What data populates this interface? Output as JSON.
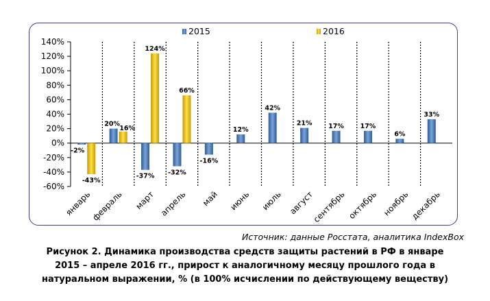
{
  "chart_data": {
    "type": "bar",
    "categories": [
      "январь",
      "февраль",
      "март",
      "апрель",
      "май",
      "июнь",
      "июль",
      "август",
      "сентябрь",
      "октябрь",
      "ноябрь",
      "декабрь"
    ],
    "series": [
      {
        "name": "2015",
        "color": "#4f81bd",
        "values": [
          -2,
          20,
          -37,
          -32,
          -16,
          12,
          42,
          21,
          17,
          17,
          6,
          33
        ],
        "labels": [
          "-2%",
          "20%",
          "-37%",
          "-32%",
          "-16%",
          "12%",
          "42%",
          "21%",
          "17%",
          "17%",
          "6%",
          "33%"
        ]
      },
      {
        "name": "2016",
        "color": "#f0c000",
        "values": [
          -43,
          16,
          124,
          66,
          null,
          null,
          null,
          null,
          null,
          null,
          null,
          null
        ],
        "labels": [
          "-43%",
          "16%",
          "124%",
          "66%",
          null,
          null,
          null,
          null,
          null,
          null,
          null,
          null
        ]
      }
    ],
    "ylim": [
      -60,
      140
    ],
    "yticks": [
      -60,
      -40,
      -20,
      0,
      20,
      40,
      60,
      80,
      100,
      120,
      140
    ],
    "ytick_labels": [
      "-60%",
      "-40%",
      "-20%",
      "0%",
      "20%",
      "40%",
      "60%",
      "80%",
      "100%",
      "120%",
      "140%"
    ],
    "legend": "top-center",
    "vertical_separators": "dotted"
  },
  "source": "Источник: данные Росстата, аналитика IndexBox",
  "caption": [
    "Рисунок 2. Динамика производства средств защиты растений в РФ в январе",
    "2015 – апреле 2016 гг., прирост к аналогичному месяцу прошлого года в",
    "натуральном выражении, % (в 100% исчислении по действующему веществу)"
  ]
}
